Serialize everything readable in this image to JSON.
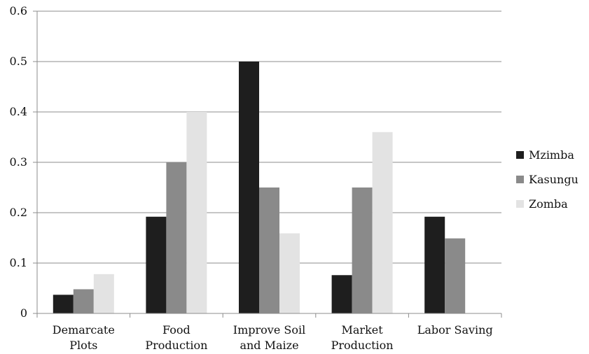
{
  "chart_data": {
    "type": "bar",
    "categories": [
      [
        "Demarcate",
        "Plots"
      ],
      [
        "Food",
        "Production"
      ],
      [
        "Improve Soil",
        "and Maize"
      ],
      [
        "Market",
        "Production"
      ],
      [
        "Labor Saving"
      ]
    ],
    "series": [
      {
        "name": "Mzimba",
        "color": "#1e1e1e",
        "values": [
          0.037,
          0.192,
          0.5,
          0.076,
          0.192
        ]
      },
      {
        "name": "Kasungu",
        "color": "#8a8a8a",
        "values": [
          0.048,
          0.3,
          0.25,
          0.25,
          0.149
        ]
      },
      {
        "name": "Zomba",
        "color": "#e3e3e3",
        "values": [
          0.078,
          0.4,
          0.159,
          0.36,
          0
        ]
      }
    ],
    "ylim": [
      0,
      0.6
    ],
    "yticks": [
      "0",
      "0.1",
      "0.2",
      "0.3",
      "0.4",
      "0.5",
      "0.6"
    ],
    "grid": true,
    "legend_position": "right",
    "title": "",
    "xlabel": "",
    "ylabel": ""
  }
}
